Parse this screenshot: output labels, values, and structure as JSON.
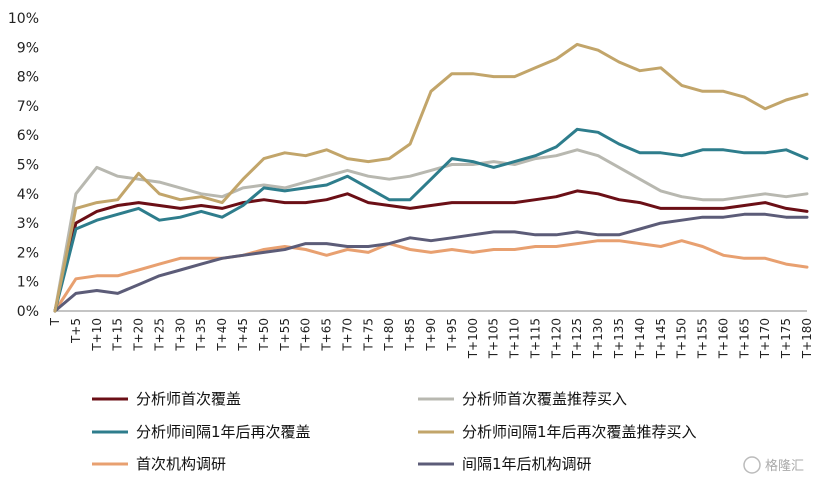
{
  "chart_data": {
    "type": "line",
    "title": "",
    "xlabel": "",
    "ylabel": "",
    "ylim": [
      0,
      10
    ],
    "y_ticks": [
      "0%",
      "1%",
      "2%",
      "3%",
      "4%",
      "5%",
      "6%",
      "7%",
      "8%",
      "9%",
      "10%"
    ],
    "x_ticks": [
      "T",
      "T+5",
      "T+10",
      "T+15",
      "T+20",
      "T+25",
      "T+30",
      "T+35",
      "T+40",
      "T+45",
      "T+50",
      "T+55",
      "T+60",
      "T+65",
      "T+70",
      "T+75",
      "T+80",
      "T+85",
      "T+90",
      "T+95",
      "T+100",
      "T+105",
      "T+110",
      "T+115",
      "T+120",
      "T+125",
      "T+130",
      "T+135",
      "T+140",
      "T+145",
      "T+150",
      "T+155",
      "T+160",
      "T+165",
      "T+170",
      "T+175",
      "T+180"
    ],
    "x_values": [
      0,
      5,
      10,
      15,
      20,
      25,
      30,
      35,
      40,
      45,
      50,
      55,
      60,
      65,
      70,
      75,
      80,
      85,
      90,
      95,
      100,
      105,
      110,
      115,
      120,
      125,
      130,
      135,
      140,
      145,
      150,
      155,
      160,
      165,
      170,
      175,
      180
    ],
    "grid": false,
    "legend_position": "bottom",
    "series": [
      {
        "name": "分析师首次覆盖",
        "color": "#6b0f16",
        "values": [
          0,
          3.0,
          3.4,
          3.6,
          3.7,
          3.6,
          3.5,
          3.6,
          3.5,
          3.7,
          3.8,
          3.7,
          3.7,
          3.8,
          4.0,
          3.7,
          3.6,
          3.5,
          3.6,
          3.7,
          3.7,
          3.7,
          3.7,
          3.8,
          3.9,
          4.1,
          4.0,
          3.8,
          3.7,
          3.5,
          3.5,
          3.5,
          3.5,
          3.6,
          3.7,
          3.5,
          3.4
        ]
      },
      {
        "name": "分析师首次覆盖推荐买入",
        "color": "#b8b8b0",
        "values": [
          0,
          4.0,
          4.9,
          4.6,
          4.5,
          4.4,
          4.2,
          4.0,
          3.9,
          4.2,
          4.3,
          4.2,
          4.4,
          4.6,
          4.8,
          4.6,
          4.5,
          4.6,
          4.8,
          5.0,
          5.0,
          5.1,
          5.0,
          5.2,
          5.3,
          5.5,
          5.3,
          4.9,
          4.5,
          4.1,
          3.9,
          3.8,
          3.8,
          3.9,
          4.0,
          3.9,
          4.0
        ]
      },
      {
        "name": "分析师间隔1年后再次覆盖",
        "color": "#2e7d8c",
        "values": [
          0,
          2.8,
          3.1,
          3.3,
          3.5,
          3.1,
          3.2,
          3.4,
          3.2,
          3.6,
          4.2,
          4.1,
          4.2,
          4.3,
          4.6,
          4.2,
          3.8,
          3.8,
          4.5,
          5.2,
          5.1,
          4.9,
          5.1,
          5.3,
          5.6,
          6.2,
          6.1,
          5.7,
          5.4,
          5.4,
          5.3,
          5.5,
          5.5,
          5.4,
          5.4,
          5.5,
          5.2
        ]
      },
      {
        "name": "分析师间隔1年后再次覆盖推荐买入",
        "color": "#c2a56a",
        "values": [
          0,
          3.5,
          3.7,
          3.8,
          4.7,
          4.0,
          3.8,
          3.9,
          3.7,
          4.5,
          5.2,
          5.4,
          5.3,
          5.5,
          5.2,
          5.1,
          5.2,
          5.7,
          7.5,
          8.1,
          8.1,
          8.0,
          8.0,
          8.3,
          8.6,
          9.1,
          8.9,
          8.5,
          8.2,
          8.3,
          7.7,
          7.5,
          7.5,
          7.3,
          6.9,
          7.2,
          7.4
        ]
      },
      {
        "name": "首次机构调研",
        "color": "#e8a070",
        "values": [
          0,
          1.1,
          1.2,
          1.2,
          1.4,
          1.6,
          1.8,
          1.8,
          1.8,
          1.9,
          2.1,
          2.2,
          2.1,
          1.9,
          2.1,
          2.0,
          2.3,
          2.1,
          2.0,
          2.1,
          2.0,
          2.1,
          2.1,
          2.2,
          2.2,
          2.3,
          2.4,
          2.4,
          2.3,
          2.2,
          2.4,
          2.2,
          1.9,
          1.8,
          1.8,
          1.6,
          1.5
        ]
      },
      {
        "name": "间隔1年后机构调研",
        "color": "#5c5c78",
        "values": [
          0,
          0.6,
          0.7,
          0.6,
          0.9,
          1.2,
          1.4,
          1.6,
          1.8,
          1.9,
          2.0,
          2.1,
          2.3,
          2.3,
          2.2,
          2.2,
          2.3,
          2.5,
          2.4,
          2.5,
          2.6,
          2.7,
          2.7,
          2.6,
          2.6,
          2.7,
          2.6,
          2.6,
          2.8,
          3.0,
          3.1,
          3.2,
          3.2,
          3.3,
          3.3,
          3.2,
          3.2
        ]
      }
    ]
  },
  "watermark": "格隆汇"
}
